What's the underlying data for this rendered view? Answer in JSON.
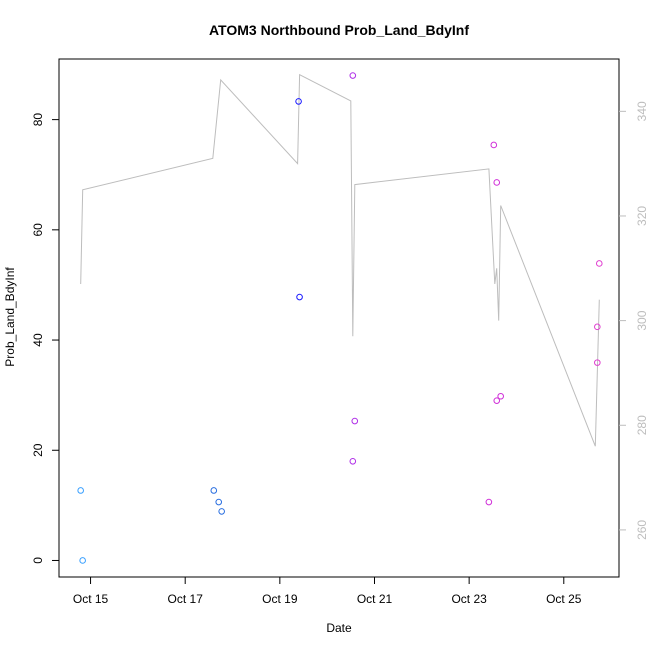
{
  "chart_data": {
    "type": "scatter",
    "title": "ATOM3 Northbound Prob_Land_BdyInf",
    "xlabel": "Date",
    "ylabel": "Prob_Land_BdyInf",
    "xlim": [
      "2019-10-14 08:00",
      "2019-10-26 04:00"
    ],
    "ylim": [
      -3,
      91
    ],
    "y2lim": [
      251,
      350
    ],
    "x_ticks": [
      {
        "date": "2019-10-15",
        "label": "Oct 15"
      },
      {
        "date": "2019-10-17",
        "label": "Oct 17"
      },
      {
        "date": "2019-10-19",
        "label": "Oct 19"
      },
      {
        "date": "2019-10-21",
        "label": "Oct 21"
      },
      {
        "date": "2019-10-23",
        "label": "Oct 23"
      },
      {
        "date": "2019-10-25",
        "label": "Oct 25"
      }
    ],
    "y_ticks": [
      0,
      20,
      40,
      60,
      80
    ],
    "y2_ticks": [
      260,
      280,
      300,
      320,
      340
    ],
    "grid": false,
    "points": [
      {
        "x": "2019-10-14 19:00",
        "y": 12.7,
        "color": "#3aa0ff"
      },
      {
        "x": "2019-10-14 20:00",
        "y": 0.0,
        "color": "#3aa0ff"
      },
      {
        "x": "2019-10-17 14:30",
        "y": 12.7,
        "color": "#2a6fe0"
      },
      {
        "x": "2019-10-17 17:00",
        "y": 10.6,
        "color": "#2a6fe0"
      },
      {
        "x": "2019-10-17 18:30",
        "y": 8.9,
        "color": "#2a6fe0"
      },
      {
        "x": "2019-10-19 09:30",
        "y": 83.3,
        "color": "#1a1aff"
      },
      {
        "x": "2019-10-19 10:00",
        "y": 47.8,
        "color": "#1a1aff"
      },
      {
        "x": "2019-10-20 13:00",
        "y": 88.0,
        "color": "#b030e8"
      },
      {
        "x": "2019-10-20 13:00",
        "y": 18.0,
        "color": "#b030e8"
      },
      {
        "x": "2019-10-20 14:00",
        "y": 25.3,
        "color": "#b030e8"
      },
      {
        "x": "2019-10-23 10:00",
        "y": 10.6,
        "color": "#d030d8"
      },
      {
        "x": "2019-10-23 12:30",
        "y": 75.4,
        "color": "#d030d8"
      },
      {
        "x": "2019-10-23 14:00",
        "y": 68.6,
        "color": "#d030d8"
      },
      {
        "x": "2019-10-23 14:00",
        "y": 29.0,
        "color": "#d030d8"
      },
      {
        "x": "2019-10-23 16:00",
        "y": 29.8,
        "color": "#d030d8"
      },
      {
        "x": "2019-10-25 17:00",
        "y": 42.4,
        "color": "#e040d0"
      },
      {
        "x": "2019-10-25 17:00",
        "y": 35.9,
        "color": "#e040d0"
      },
      {
        "x": "2019-10-25 18:00",
        "y": 53.9,
        "color": "#e040d0"
      }
    ],
    "line_series": {
      "color": "#bdbdbd",
      "axis": "right",
      "points": [
        {
          "x": "2019-10-14 19:00",
          "y": 307
        },
        {
          "x": "2019-10-14 20:00",
          "y": 325
        },
        {
          "x": "2019-10-17 14:00",
          "y": 331
        },
        {
          "x": "2019-10-17 18:00",
          "y": 346
        },
        {
          "x": "2019-10-19 09:00",
          "y": 330
        },
        {
          "x": "2019-10-19 10:00",
          "y": 347
        },
        {
          "x": "2019-10-20 12:00",
          "y": 342
        },
        {
          "x": "2019-10-20 13:00",
          "y": 297
        },
        {
          "x": "2019-10-20 14:00",
          "y": 326
        },
        {
          "x": "2019-10-23 10:00",
          "y": 329
        },
        {
          "x": "2019-10-23 13:00",
          "y": 307
        },
        {
          "x": "2019-10-23 14:00",
          "y": 310
        },
        {
          "x": "2019-10-23 15:00",
          "y": 300
        },
        {
          "x": "2019-10-23 16:00",
          "y": 322
        },
        {
          "x": "2019-10-25 16:00",
          "y": 276
        },
        {
          "x": "2019-10-25 18:00",
          "y": 304
        }
      ]
    }
  }
}
